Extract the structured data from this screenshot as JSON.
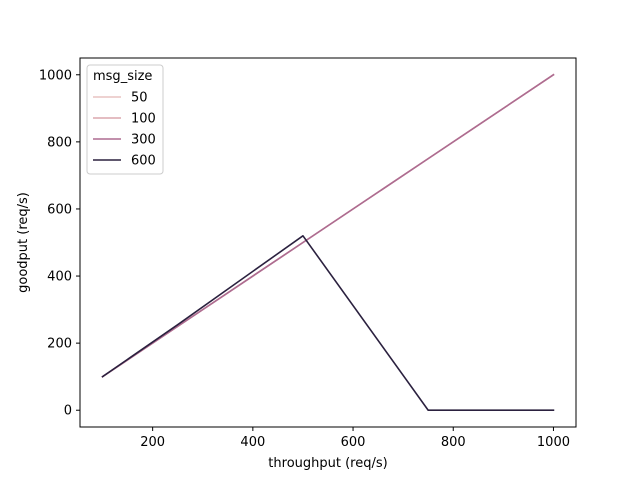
{
  "chart_data": {
    "type": "line",
    "title": "",
    "xlabel": "throughput (req/s)",
    "ylabel": "goodput (req/s)",
    "xlim": [
      55,
      1045
    ],
    "ylim": [
      -50,
      1050
    ],
    "xticks": [
      200,
      400,
      600,
      800,
      1000
    ],
    "yticks": [
      0,
      200,
      400,
      600,
      800,
      1000
    ],
    "grid": false,
    "legend": {
      "title": "msg_size",
      "placement": "top-left"
    },
    "series": [
      {
        "name": "50",
        "color": "#e9c3c2",
        "x": [
          100,
          250,
          500,
          750,
          1000
        ],
        "y": [
          100,
          250,
          500,
          750,
          1000
        ]
      },
      {
        "name": "100",
        "color": "#dca7ad",
        "x": [
          100,
          250,
          500,
          750,
          1000
        ],
        "y": [
          100,
          250,
          500,
          750,
          1000
        ]
      },
      {
        "name": "300",
        "color": "#ad6c91",
        "x": [
          100,
          250,
          500,
          750,
          1000
        ],
        "y": [
          100,
          250,
          500,
          750,
          1000
        ]
      },
      {
        "name": "600",
        "color": "#2b213f",
        "x": [
          100,
          250,
          500,
          750,
          1000
        ],
        "y": [
          100,
          255,
          520,
          0,
          0
        ]
      }
    ]
  }
}
